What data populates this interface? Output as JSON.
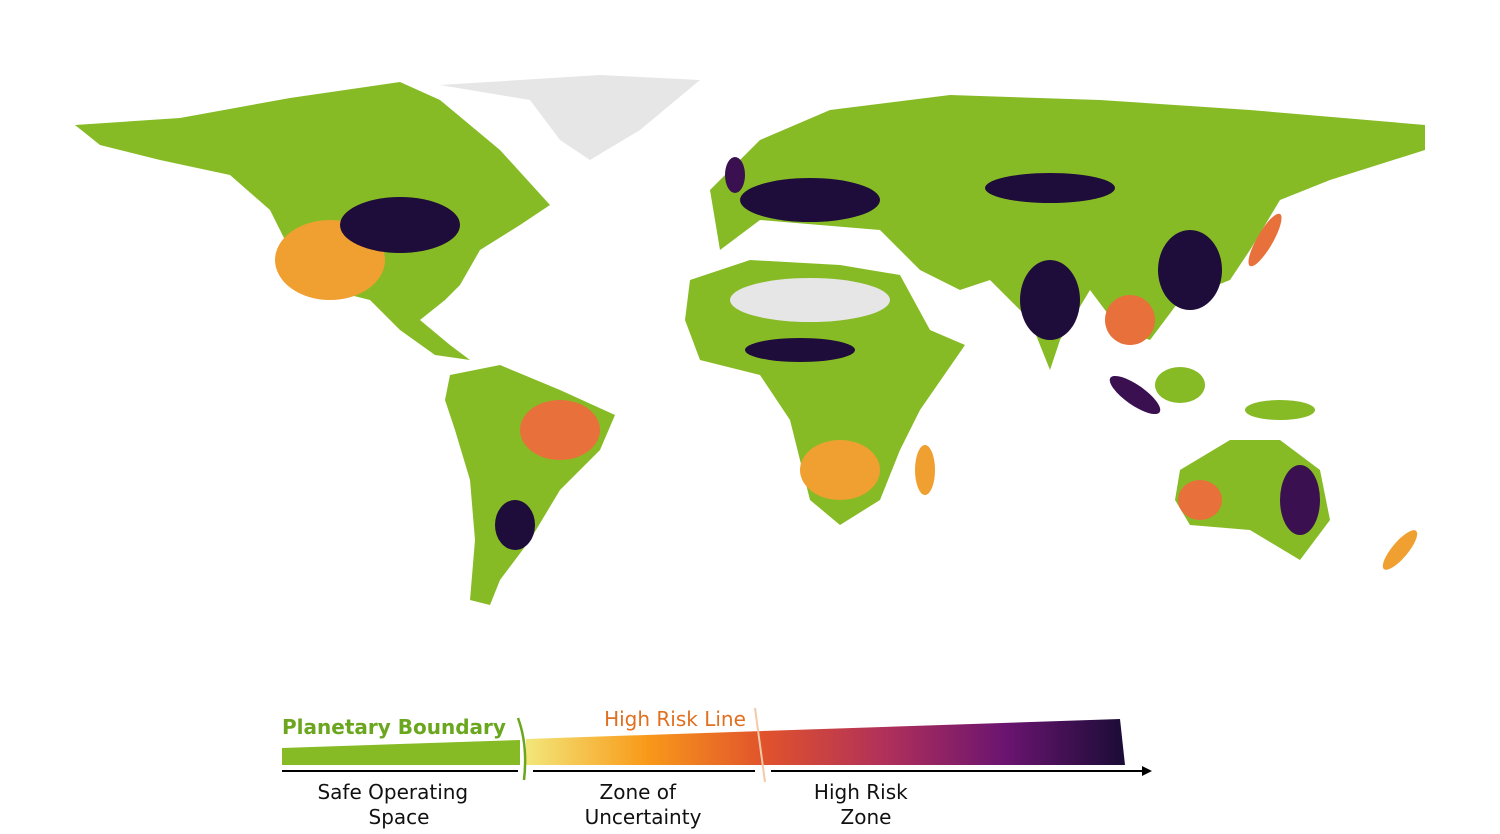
{
  "legend": {
    "planetary_boundary": "Planetary Boundary",
    "high_risk_line": "High Risk Line",
    "zones": [
      {
        "lines": [
          "Safe Operating",
          "Space"
        ]
      },
      {
        "lines": [
          "Zone of",
          "Uncertainty"
        ]
      },
      {
        "lines": [
          "High Risk",
          "Zone"
        ]
      }
    ]
  }
}
